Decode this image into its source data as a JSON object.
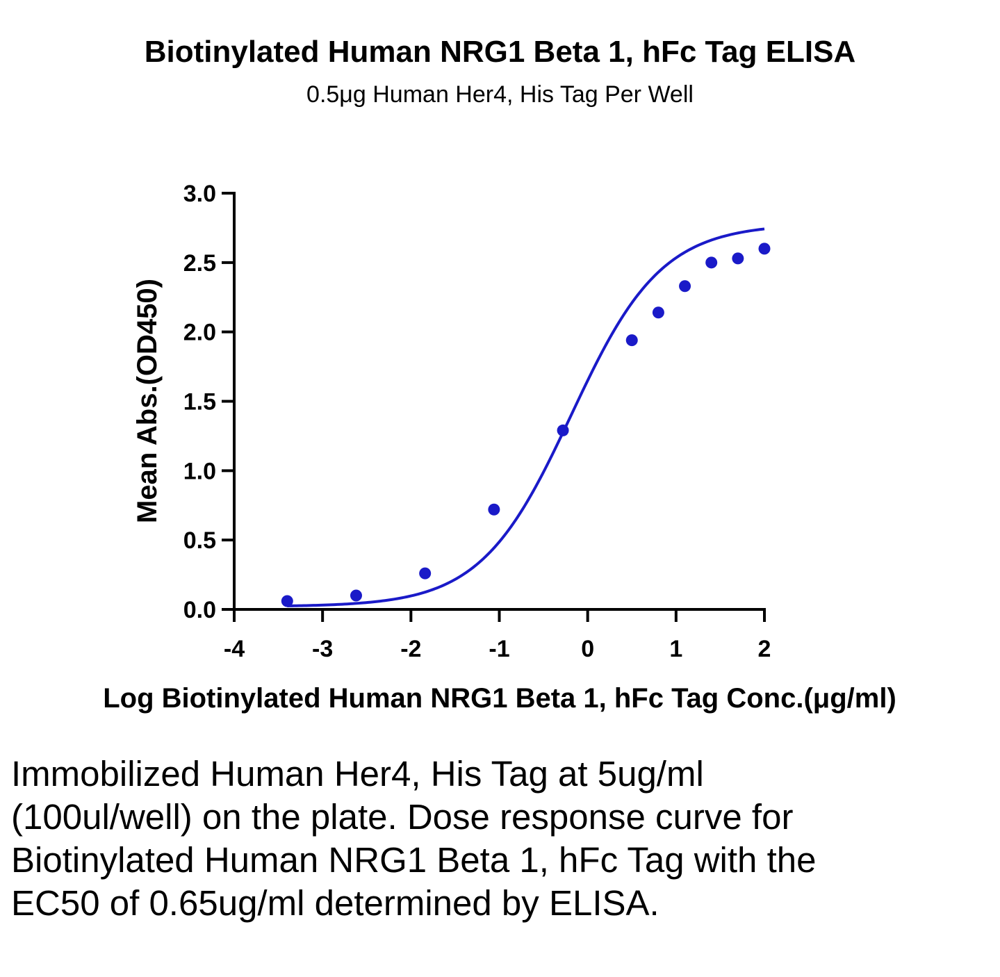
{
  "chart_data": {
    "type": "scatter",
    "title": "Biotinylated Human NRG1 Beta 1, hFc Tag ELISA",
    "subtitle": "0.5μg Human Her4, His Tag Per Well",
    "xlabel": "Log Biotinylated Human NRG1 Beta 1, hFc Tag Conc.(μg/ml)",
    "ylabel": "Mean Abs.(OD450)",
    "xlim": [
      -4,
      2
    ],
    "ylim": [
      0,
      3.0
    ],
    "x_ticks": [
      "-4",
      "-3",
      "-2",
      "-1",
      "0",
      "1",
      "2"
    ],
    "y_ticks": [
      "0.0",
      "0.5",
      "1.0",
      "1.5",
      "2.0",
      "2.5",
      "3.0"
    ],
    "grid": false,
    "legend": "none",
    "series": [
      {
        "color": "#1a1ac8",
        "points": [
          {
            "x": -3.4,
            "y": 0.06
          },
          {
            "x": -2.62,
            "y": 0.1
          },
          {
            "x": -1.84,
            "y": 0.26
          },
          {
            "x": -1.06,
            "y": 0.72
          },
          {
            "x": -0.28,
            "y": 1.29
          },
          {
            "x": 0.5,
            "y": 1.94
          },
          {
            "x": 0.8,
            "y": 2.14
          },
          {
            "x": 1.1,
            "y": 2.33
          },
          {
            "x": 1.4,
            "y": 2.5
          },
          {
            "x": 1.7,
            "y": 2.53
          },
          {
            "x": 2.0,
            "y": 2.6
          }
        ],
        "fit": {
          "model": "4PL",
          "bottom": 0.02,
          "top": 2.78,
          "log_ec50": -0.187,
          "hill": 0.85
        }
      }
    ]
  },
  "caption": "Immobilized Human Her4, His Tag at 5ug/ml (100ul/well) on the plate. Dose response curve for Biotinylated Human NRG1 Beta 1, hFc Tag with the EC50 of 0.65ug/ml determined by ELISA."
}
